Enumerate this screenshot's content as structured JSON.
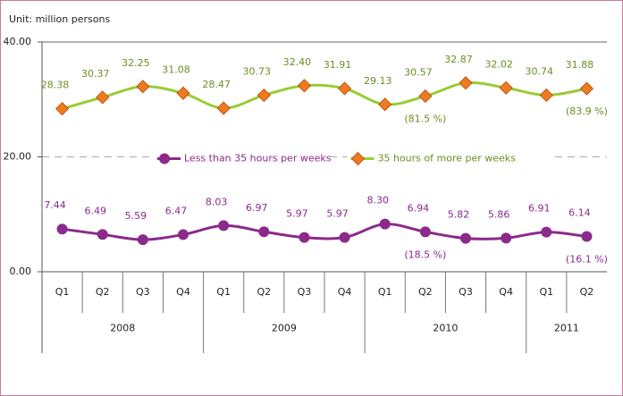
{
  "chart_data": {
    "type": "line",
    "unit_label": "Unit: million persons",
    "groups": [
      {
        "label": "2008",
        "categories": [
          "Q1",
          "Q2",
          "Q3",
          "Q4"
        ]
      },
      {
        "label": "2009",
        "categories": [
          "Q1",
          "Q2",
          "Q3",
          "Q4"
        ]
      },
      {
        "label": "2010",
        "categories": [
          "Q1",
          "Q2",
          "Q3",
          "Q4"
        ]
      },
      {
        "label": "2011",
        "categories": [
          "Q1",
          "Q2"
        ]
      }
    ],
    "series": [
      {
        "name": "Less than 35 hours per weeks",
        "color": "#8b2a8b",
        "marker": "circle",
        "marker_color": "#8b2a8b",
        "values": [
          7.44,
          6.49,
          5.59,
          6.47,
          8.03,
          6.97,
          5.97,
          5.97,
          8.3,
          6.94,
          5.82,
          5.86,
          6.91,
          6.14
        ],
        "value_labels": [
          "7.44",
          "6.49",
          "5.59",
          "6.47",
          "8.03",
          "6.97",
          "5.97",
          "5.97",
          "8.30",
          "6.94",
          "5.82",
          "5.86",
          "6.91",
          "6.14"
        ]
      },
      {
        "name": "35 hours of more per weeks",
        "color": "#99cc33",
        "marker": "diamond",
        "marker_color": "#f07a1e",
        "values": [
          28.38,
          30.37,
          32.25,
          31.08,
          28.47,
          30.73,
          32.4,
          31.91,
          29.13,
          30.57,
          32.87,
          32.02,
          30.74,
          31.88
        ],
        "value_labels": [
          "28.38",
          "30.37",
          "32.25",
          "31.08",
          "28.47",
          "30.73",
          "32.40",
          "31.91",
          "29.13",
          "30.57",
          "32.87",
          "32.02",
          "30.74",
          "31.88"
        ]
      }
    ],
    "annotations": [
      {
        "text": "(81.5 %)",
        "series": 1,
        "index": 9
      },
      {
        "text": "(83.9 %)",
        "series": 1,
        "index": 13
      },
      {
        "text": "(18.5 %)",
        "series": 0,
        "index": 9
      },
      {
        "text": "(16.1 %)",
        "series": 0,
        "index": 13
      }
    ],
    "ylim": [
      0,
      40
    ],
    "yticks": [
      {
        "value": 0,
        "label": "0.00"
      },
      {
        "value": 20,
        "label": "20.00"
      },
      {
        "value": 40,
        "label": "40.00"
      }
    ],
    "grid": true,
    "legend": "center"
  }
}
